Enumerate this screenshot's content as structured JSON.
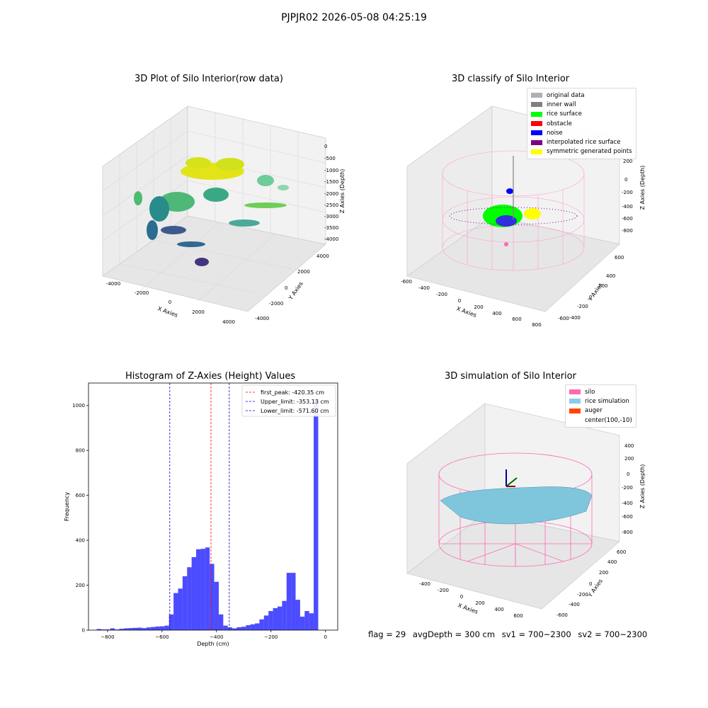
{
  "suptitle": "PJPJR02 2026-05-08 04:25:19",
  "panels": {
    "raw": {
      "title": "3D Plot of Silo Interior(row data)",
      "xlabel": "X Axies",
      "ylabel": "Y Axies",
      "zlabel": "Z Axies (Depth)",
      "x_ticks": [
        "-4000",
        "-2000",
        "0",
        "2000",
        "4000"
      ],
      "y_ticks": [
        "4000",
        "2000",
        "0",
        "-2000",
        "-4000"
      ],
      "z_ticks": [
        "0",
        "-500",
        "-1000",
        "-1500",
        "-2000",
        "-2500",
        "-3000",
        "-3500",
        "-4000"
      ],
      "colormap": [
        "#440154",
        "#3b528b",
        "#21918c",
        "#5ec962",
        "#fde725"
      ]
    },
    "classify": {
      "title": "3D classify of Silo Interior",
      "xlabel": "X Axies",
      "ylabel": "Y Axies",
      "zlabel": "Z Axies (Depth)",
      "x_ticks": [
        "-600",
        "-400",
        "-200",
        "0",
        "200",
        "400",
        "600",
        "800"
      ],
      "y_ticks": [
        "600",
        "400",
        "200",
        "0",
        "-200",
        "-400",
        "-600"
      ],
      "z_ticks": [
        "200",
        "0",
        "-200",
        "-400",
        "-600",
        "-800"
      ],
      "z_top_partial": "0",
      "legend": [
        {
          "label": "original data",
          "color": "#b0b0b0"
        },
        {
          "label": "inner wall",
          "color": "#808080"
        },
        {
          "label": "rice surface",
          "color": "#00ff00"
        },
        {
          "label": "obstacle",
          "color": "#ff0000"
        },
        {
          "label": "noise",
          "color": "#0000ff"
        },
        {
          "label": "interpolated rice surface",
          "color": "#800080"
        },
        {
          "label": "symmetric generated points",
          "color": "#ffff00"
        }
      ]
    },
    "simulation": {
      "title": "3D simulation of Silo Interior",
      "xlabel": "X Axies",
      "ylabel": "Y Axies",
      "zlabel": "Z Axies (Depth)",
      "x_ticks": [
        "-400",
        "-200",
        "0",
        "200",
        "400",
        "600"
      ],
      "y_ticks": [
        "600",
        "400",
        "200",
        "0",
        "-200",
        "-400",
        "-600"
      ],
      "z_ticks": [
        "400",
        "200",
        "0",
        "-200",
        "-400",
        "-600",
        "-800"
      ],
      "legend": [
        {
          "label": "silo",
          "color": "#ff69b4"
        },
        {
          "label": "rice simulation",
          "color": "#87ceeb"
        },
        {
          "label": "auger",
          "color": "#ff4500"
        },
        {
          "label": "center(100,-10)",
          "color": ""
        }
      ]
    }
  },
  "footer": {
    "flag": "flag = 29",
    "avg": "avgDepth = 300 cm",
    "sv1": "sv1 = 700~2300",
    "sv2": "sv2 = 700~2300"
  },
  "chart_data": {
    "type": "bar",
    "title": "Histogram of Z-Axies (Height) Values",
    "xlabel": "Depth (cm)",
    "ylabel": "Frequency",
    "xlim": [
      -870,
      45
    ],
    "ylim": [
      0,
      1100
    ],
    "x_ticks": [
      -800,
      -600,
      -400,
      -200,
      0
    ],
    "y_ticks": [
      0,
      200,
      400,
      600,
      800,
      1000
    ],
    "bar_color": "#0000ff",
    "bin_width": 16.6,
    "bin_left_edges": [
      -840,
      -823.4,
      -806.8,
      -790.2,
      -773.6,
      -757,
      -740.4,
      -723.8,
      -707.2,
      -690.6,
      -674,
      -657.4,
      -640.8,
      -624.2,
      -607.6,
      -591,
      -574.4,
      -557.8,
      -541.2,
      -524.6,
      -508,
      -491.4,
      -474.8,
      -458.2,
      -441.6,
      -425,
      -408.4,
      -391.8,
      -375.2,
      -358.6,
      -342,
      -325.4,
      -308.8,
      -292.2,
      -275.6,
      -259,
      -242.4,
      -225.8,
      -209.2,
      -192.6,
      -176,
      -159.4,
      -142.8,
      -126.2,
      -109.6,
      -93,
      -76.4,
      -59.8,
      -43.2,
      -26.6,
      -10
    ],
    "counts": [
      5,
      3,
      3,
      8,
      3,
      6,
      8,
      9,
      10,
      11,
      9,
      12,
      14,
      16,
      17,
      20,
      70,
      165,
      185,
      240,
      280,
      325,
      360,
      362,
      368,
      295,
      215,
      70,
      20,
      12,
      8,
      13,
      15,
      22,
      26,
      30,
      48,
      65,
      85,
      98,
      105,
      130,
      255,
      255,
      135,
      60,
      85,
      75,
      1030,
      0,
      0
    ],
    "lines": [
      {
        "label": "first_peak: -420.35 cm",
        "value": -420.35,
        "color": "#ff0000"
      },
      {
        "label": "Upper_limit: -353.13 cm",
        "value": -353.13,
        "color": "#0000cc"
      },
      {
        "label": "Lower_limit: -571.60 cm",
        "value": -571.6,
        "color": "#0000cc"
      }
    ],
    "legend_position": "top-right"
  }
}
